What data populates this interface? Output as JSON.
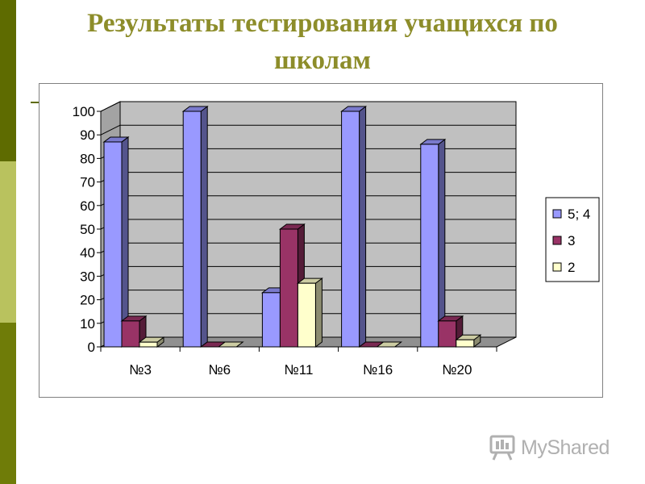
{
  "slide": {
    "title_line1": "Результаты тестирования учащихся по",
    "title_line2": "школам",
    "title_color": "#8d8d2a",
    "sidebar_colors": [
      "#5e6b00",
      "#b9c25e",
      "#6f7c08"
    ]
  },
  "watermark": {
    "text": "MyShared",
    "icon": "presentation-board-icon",
    "color": "#b0b0b0"
  },
  "chart_data": {
    "type": "bar",
    "style": "3d-clustered",
    "categories": [
      "№3",
      "№6",
      "№11",
      "№16",
      "№20"
    ],
    "series": [
      {
        "name": "5; 4",
        "color": "#9999ff",
        "values": [
          87,
          100,
          23,
          100,
          86
        ]
      },
      {
        "name": "3",
        "color": "#993366",
        "values": [
          11,
          0,
          50,
          0,
          11
        ]
      },
      {
        "name": "2",
        "color": "#ffffcc",
        "values": [
          2,
          0,
          27,
          0,
          3
        ]
      }
    ],
    "ylim": [
      0,
      100
    ],
    "yticks": [
      "0",
      "10",
      "20",
      "30",
      "40",
      "50",
      "60",
      "70",
      "80",
      "90",
      "100"
    ],
    "grid": true,
    "legend_position": "right",
    "wall_color": "#c0c0c0"
  }
}
